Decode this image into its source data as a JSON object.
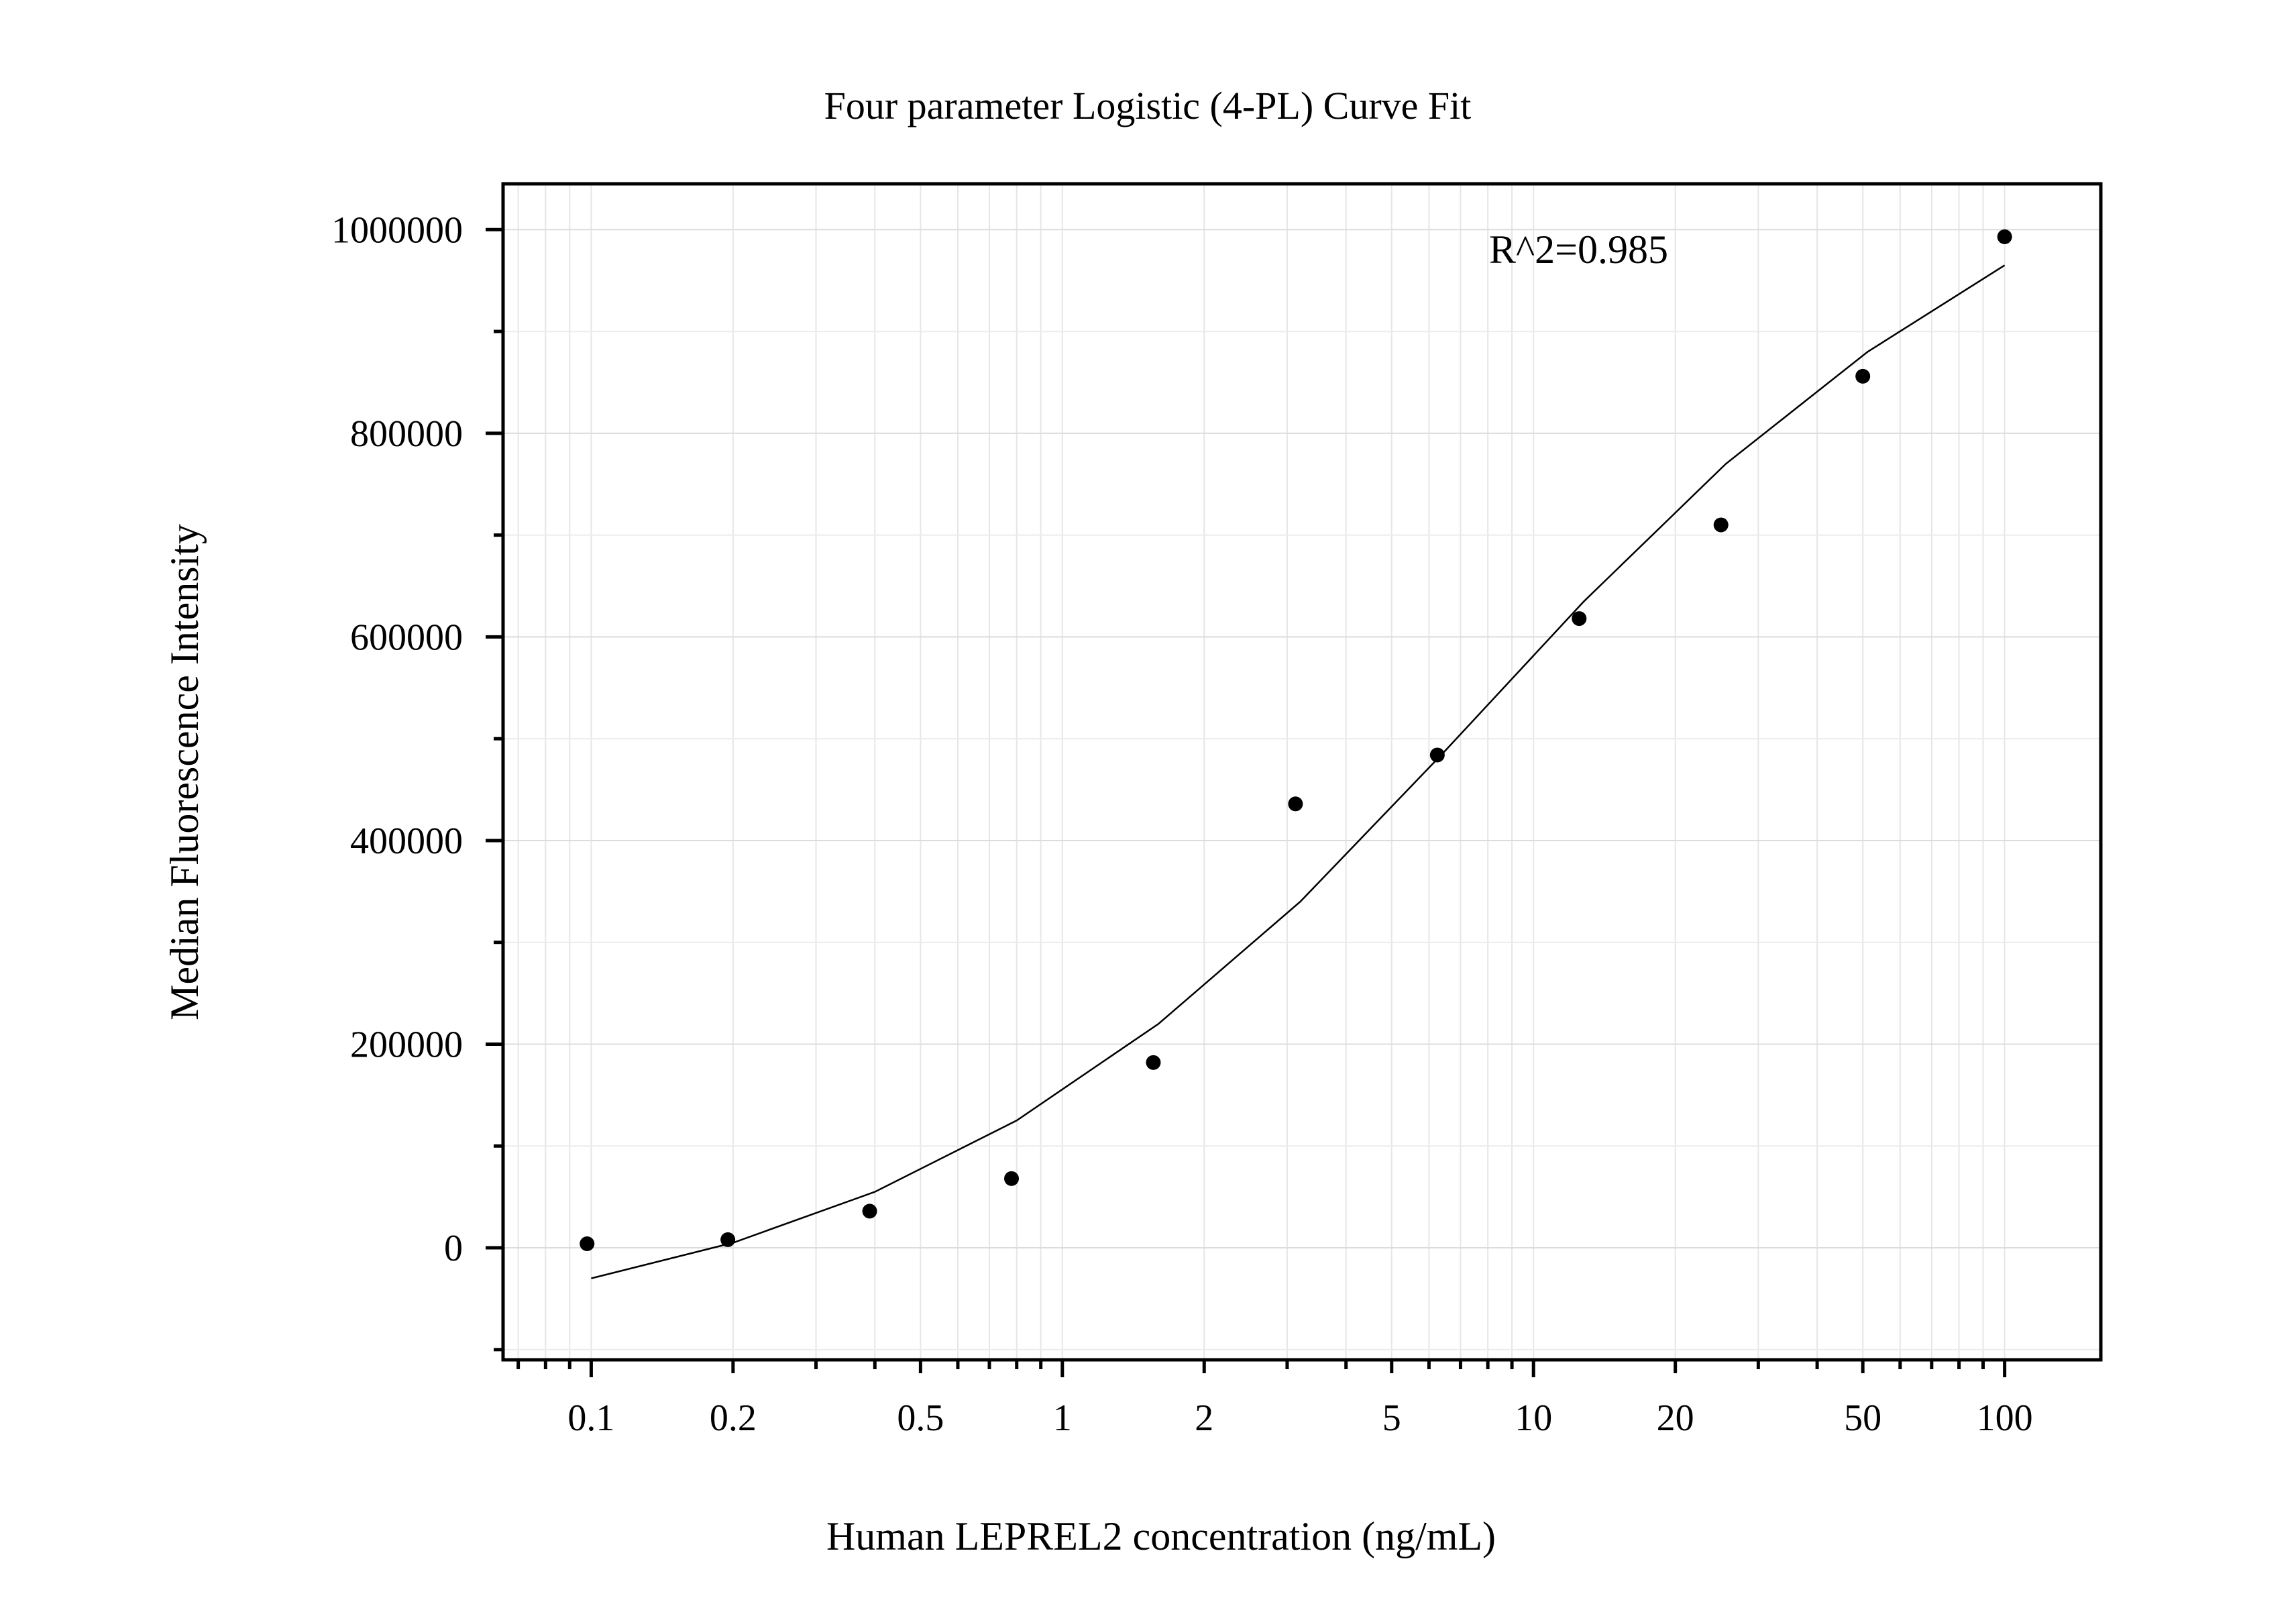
{
  "chart_data": {
    "type": "scatter",
    "title": "Four parameter Logistic (4-PL) Curve Fit",
    "xlabel": "Human LEPREL2 concentration (ng/mL)",
    "ylabel": "Median Fluorescence Intensity",
    "annotation": "R^2=0.985",
    "x_scale": "log",
    "xlim": [
      0.065,
      160
    ],
    "ylim": [
      -110000,
      1045000
    ],
    "grid": true,
    "x_ticks": [
      {
        "value": 0.1,
        "label": "0.1"
      },
      {
        "value": 0.2,
        "label": "0.2"
      },
      {
        "value": 0.5,
        "label": "0.5"
      },
      {
        "value": 1,
        "label": "1"
      },
      {
        "value": 2,
        "label": "2"
      },
      {
        "value": 5,
        "label": "5"
      },
      {
        "value": 10,
        "label": "10"
      },
      {
        "value": 20,
        "label": "20"
      },
      {
        "value": 50,
        "label": "50"
      },
      {
        "value": 100,
        "label": "100"
      }
    ],
    "y_ticks": [
      {
        "value": 0,
        "label": "0"
      },
      {
        "value": 200000,
        "label": "200000"
      },
      {
        "value": 400000,
        "label": "400000"
      },
      {
        "value": 600000,
        "label": "600000"
      },
      {
        "value": 800000,
        "label": "800000"
      },
      {
        "value": 1000000,
        "label": "1000000"
      }
    ],
    "series": [
      {
        "kind": "points",
        "color": "#000000",
        "x": [
          0.098,
          0.195,
          0.39,
          0.78,
          1.56,
          3.125,
          6.25,
          12.5,
          25,
          50,
          100
        ],
        "y": [
          4000,
          8000,
          36000,
          68000,
          182000,
          436000,
          484000,
          618000,
          710000,
          856000,
          993000
        ]
      },
      {
        "kind": "fit",
        "color": "#000000",
        "x": [
          0.1,
          0.2,
          0.4,
          0.8,
          1.6,
          3.2,
          6.4,
          12.8,
          25.6,
          51.2,
          100
        ],
        "y": [
          -30000,
          5000,
          55000,
          125000,
          220000,
          340000,
          485000,
          635000,
          770000,
          880000,
          965000
        ]
      }
    ]
  }
}
